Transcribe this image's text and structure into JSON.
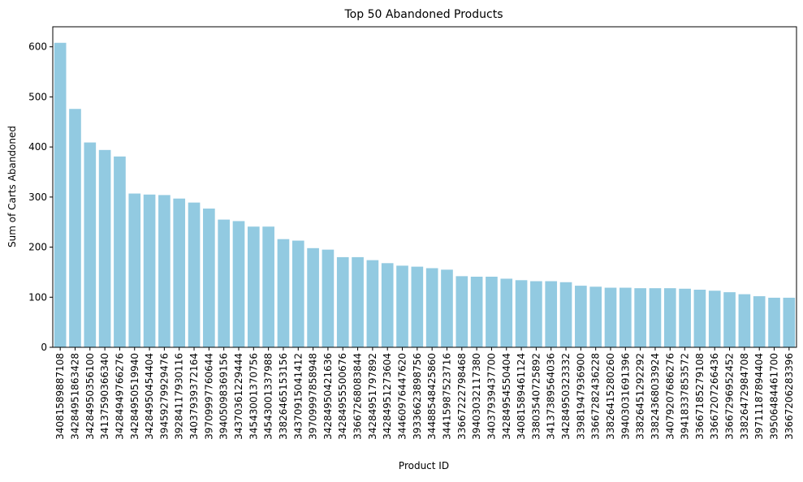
{
  "chart_data": {
    "type": "bar",
    "title": "Top 50 Abandoned Products",
    "xlabel": "Product ID",
    "ylabel": "Sum of Carts Abandoned",
    "ylim": [
      0,
      640
    ],
    "yticks": [
      0,
      100,
      200,
      300,
      400,
      500,
      600
    ],
    "grid": false,
    "legend": "none",
    "bar_color": "#92CAE1",
    "categories": [
      "34081589887108",
      "34284951863428",
      "34284950356100",
      "34137590366340",
      "34284949766276",
      "34284950519940",
      "34284950454404",
      "39459279929476",
      "39284117930116",
      "34037939372164",
      "39709997760644",
      "39405098369156",
      "34370361229444",
      "34543001370756",
      "34543001337988",
      "33826465153156",
      "34370915041412",
      "39709997858948",
      "34284950421636",
      "34284955500676",
      "33667268083844",
      "34284951797892",
      "34284951273604",
      "34460976447620",
      "39336623898756",
      "34488548425860",
      "34415987523716",
      "33667222798468",
      "39403032117380",
      "34037939437700",
      "34284954550404",
      "34081589461124",
      "33803540725892",
      "34137389564036",
      "34284950323332",
      "33981947936900",
      "33667282436228",
      "33826415280260",
      "39403031691396",
      "33826451292292",
      "33824368033924",
      "34079207686276",
      "39418337853572",
      "33667185279108",
      "33667207266436",
      "33667296952452",
      "33826472984708",
      "39711187894404",
      "39506484461700",
      "33667206283396"
    ],
    "values": [
      608,
      476,
      409,
      394,
      381,
      307,
      305,
      304,
      297,
      289,
      277,
      255,
      252,
      241,
      241,
      216,
      213,
      198,
      195,
      180,
      180,
      174,
      168,
      163,
      161,
      158,
      155,
      142,
      141,
      141,
      137,
      134,
      132,
      132,
      130,
      123,
      121,
      119,
      119,
      118,
      118,
      118,
      117,
      115,
      113,
      110,
      106,
      102,
      99,
      99
    ]
  }
}
